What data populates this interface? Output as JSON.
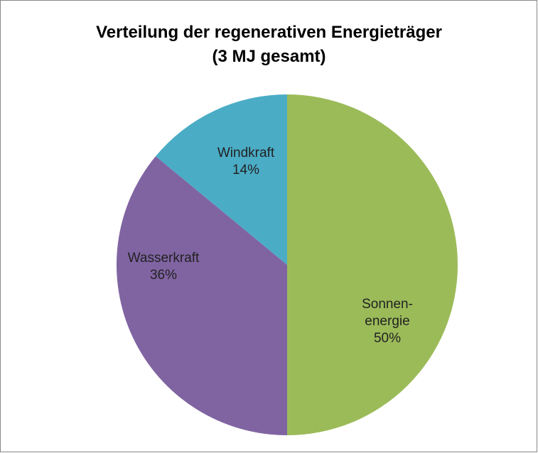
{
  "chart_data": {
    "type": "pie",
    "title": "Verteilung der regenerativen Energieträger",
    "subtitle": "(3 MJ gesamt)",
    "categories": [
      "Sonnen-\nenergie",
      "Wasserkraft",
      "Windkraft"
    ],
    "values": [
      50,
      36,
      14
    ],
    "value_labels": [
      "50%",
      "36%",
      "14%"
    ],
    "colors": [
      "#9bbb59",
      "#8064a2",
      "#4bacc6"
    ]
  }
}
